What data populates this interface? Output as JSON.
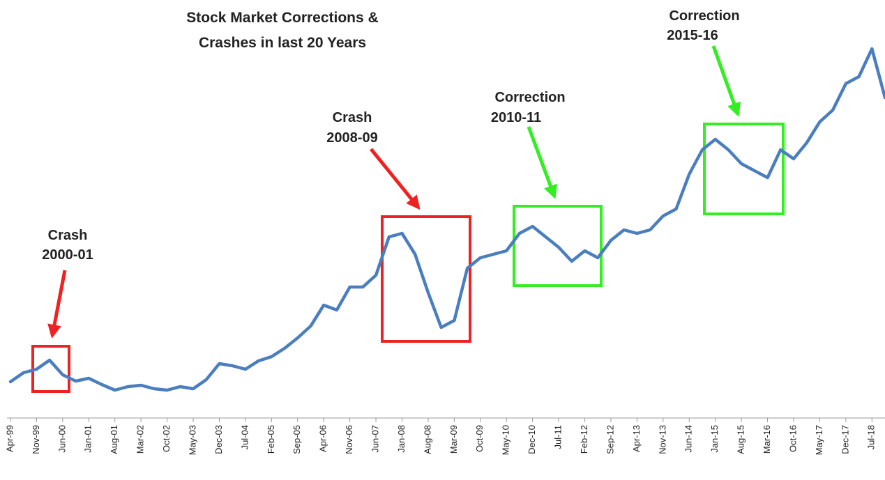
{
  "chart_data": {
    "type": "line",
    "title": [
      "Stock Market Corrections &",
      "Crashes in last 20 Years"
    ],
    "annotations": [
      [
        "Crash",
        "2000-01"
      ],
      [
        "Crash",
        "2008-09"
      ],
      [
        "Correction",
        "2010-11"
      ],
      [
        "Correction",
        "2015-16"
      ]
    ],
    "color": "#4a7ebf",
    "categories": [
      "Apr-99",
      null,
      "Nov-99",
      null,
      "Jun-00",
      null,
      "Jan-01",
      null,
      "Aug-01",
      null,
      "Mar-02",
      null,
      "Oct-02",
      null,
      "May-03",
      null,
      "Dec-03",
      null,
      "Jul-04",
      null,
      "Feb-05",
      null,
      "Sep-05",
      null,
      "Apr-06",
      null,
      "Nov-06",
      null,
      "Jun-07",
      null,
      "Jan-08",
      null,
      "Aug-08",
      null,
      "Mar-09",
      null,
      "Oct-09",
      null,
      "May-10",
      null,
      "Dec-10",
      null,
      "Jul-11",
      null,
      "Feb-12",
      null,
      "Sep-12",
      null,
      "Apr-13",
      null,
      "Nov-13",
      null,
      "Jun-14",
      null,
      "Jan-15",
      null,
      "Aug-15",
      null,
      "Mar-16",
      null,
      "Oct-16",
      null,
      "May-17",
      null,
      "Dec-17",
      null,
      "Jul-18",
      null
    ],
    "values": [
      52,
      65,
      70,
      83,
      62,
      53,
      57,
      48,
      40,
      45,
      47,
      42,
      40,
      45,
      42,
      55,
      78,
      75,
      70,
      82,
      88,
      100,
      115,
      132,
      162,
      155,
      188,
      188,
      205,
      260,
      265,
      235,
      180,
      130,
      140,
      215,
      230,
      235,
      240,
      265,
      275,
      260,
      245,
      225,
      240,
      230,
      255,
      270,
      265,
      270,
      290,
      300,
      350,
      385,
      400,
      385,
      365,
      355,
      345,
      385,
      372,
      395,
      425,
      442,
      480,
      490,
      530,
      460
    ]
  }
}
